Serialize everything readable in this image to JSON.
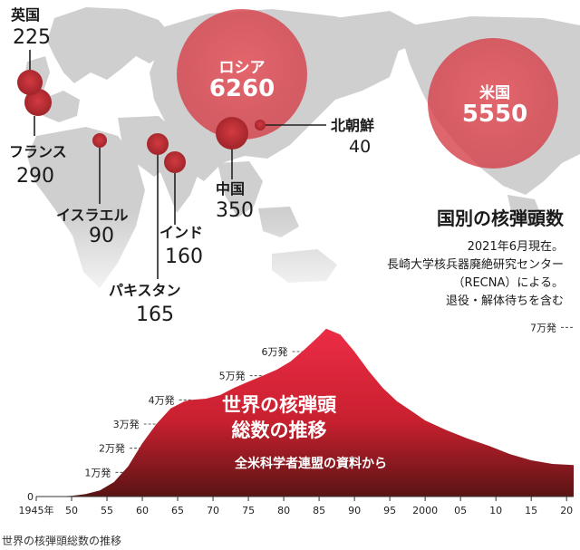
{
  "map": {
    "title": "国別の核弾頭数",
    "notes": [
      "2021年6月現在。",
      "長崎大学核兵器廃絶研究センター",
      "（RECNA）による。",
      "退役・解体待ちを含む"
    ],
    "countries": [
      {
        "name": "ロシア",
        "value": "6260"
      },
      {
        "name": "米国",
        "value": "5550"
      },
      {
        "name": "中国",
        "value": "350"
      },
      {
        "name": "フランス",
        "value": "290"
      },
      {
        "name": "英国",
        "value": "225"
      },
      {
        "name": "パキスタン",
        "value": "165"
      },
      {
        "name": "インド",
        "value": "160"
      },
      {
        "name": "イスラエル",
        "value": "90"
      },
      {
        "name": "北朝鮮",
        "value": "40"
      }
    ]
  },
  "chart_data": {
    "type": "area",
    "title": "世界の核弾頭総数の推移",
    "subtitle": "全米科学者連盟の資料から",
    "x_tick_labels": [
      "1945年",
      "50",
      "55",
      "60",
      "65",
      "70",
      "75",
      "80",
      "85",
      "90",
      "95",
      "2000",
      "05",
      "10",
      "15",
      "20"
    ],
    "y_tick_labels": [
      "0",
      "1万発",
      "2万発",
      "3万発",
      "4万発",
      "5万発",
      "6万発",
      "7万発"
    ],
    "ylim": [
      0,
      75000
    ],
    "x": [
      1945,
      1948,
      1950,
      1952,
      1954,
      1956,
      1958,
      1960,
      1962,
      1964,
      1966,
      1967,
      1969,
      1971,
      1973,
      1975,
      1977,
      1979,
      1981,
      1983,
      1985,
      1986,
      1988,
      1990,
      1992,
      1994,
      1996,
      1998,
      2000,
      2003,
      2006,
      2009,
      2012,
      2015,
      2018,
      2021
    ],
    "values": [
      2,
      50,
      300,
      1000,
      2500,
      6000,
      12500,
      22000,
      30000,
      36500,
      39500,
      40000,
      40500,
      42000,
      45000,
      47500,
      50000,
      52500,
      56000,
      61000,
      66500,
      69500,
      67000,
      60000,
      52000,
      45000,
      39500,
      35500,
      31500,
      27500,
      24000,
      21000,
      17500,
      15000,
      13500,
      13000
    ],
    "color": "#d9253a",
    "grid": false
  },
  "caption": "世界の核弾頭総数の推移"
}
